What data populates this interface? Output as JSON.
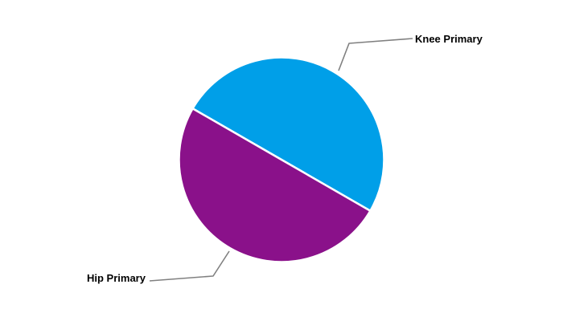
{
  "chart_data": {
    "type": "pie",
    "title": "",
    "categories": [
      "Knee Primary",
      "Hip Primary"
    ],
    "slices": [
      {
        "label": "Knee Primary",
        "value": 50,
        "color": "#009FE8"
      },
      {
        "label": "Hip Primary",
        "value": 50,
        "color": "#8A118A"
      }
    ],
    "layout": {
      "start_angle_deg": 150,
      "direction": "clockwise",
      "separator_color": "#FFFFFF",
      "separator_width": 2.5,
      "leader_line_color": "#808080",
      "label_color": "#000000",
      "background_color": "#FFFFFF",
      "legend": "none",
      "data_labels": "outside-with-leader-lines"
    }
  }
}
